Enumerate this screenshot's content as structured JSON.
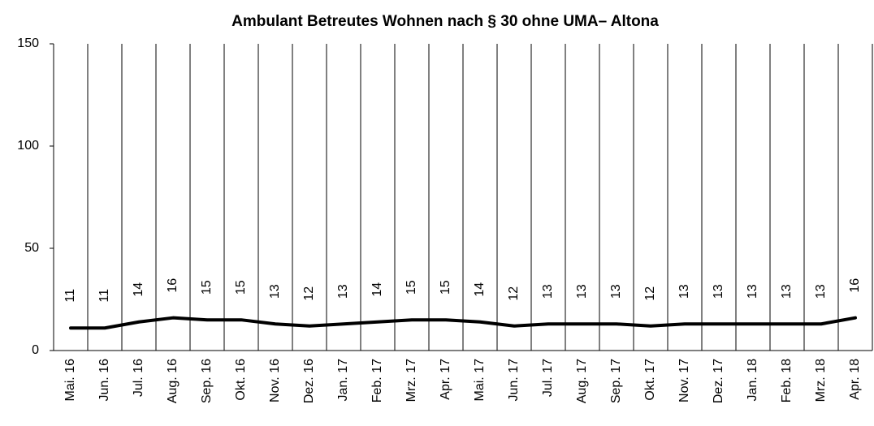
{
  "chart_data": {
    "type": "line",
    "title": "Ambulant Betreutes Wohnen nach § 30 ohne UMA– Altona",
    "categories": [
      "Mai. 16",
      "Jun. 16",
      "Jul. 16",
      "Aug. 16",
      "Sep. 16",
      "Okt. 16",
      "Nov. 16",
      "Dez. 16",
      "Jan. 17",
      "Feb. 17",
      "Mrz. 17",
      "Apr. 17",
      "Mai. 17",
      "Jun. 17",
      "Jul. 17",
      "Aug. 17",
      "Sep. 17",
      "Okt. 17",
      "Nov. 17",
      "Dez. 17",
      "Jan. 18",
      "Feb. 18",
      "Mrz. 18",
      "Apr. 18"
    ],
    "values": [
      11,
      11,
      14,
      16,
      15,
      15,
      13,
      12,
      13,
      14,
      15,
      15,
      14,
      12,
      13,
      13,
      13,
      12,
      13,
      13,
      13,
      13,
      13,
      16
    ],
    "color": "#000000",
    "ylim": [
      0,
      150
    ],
    "yticks": [
      0,
      50,
      100,
      150
    ]
  }
}
